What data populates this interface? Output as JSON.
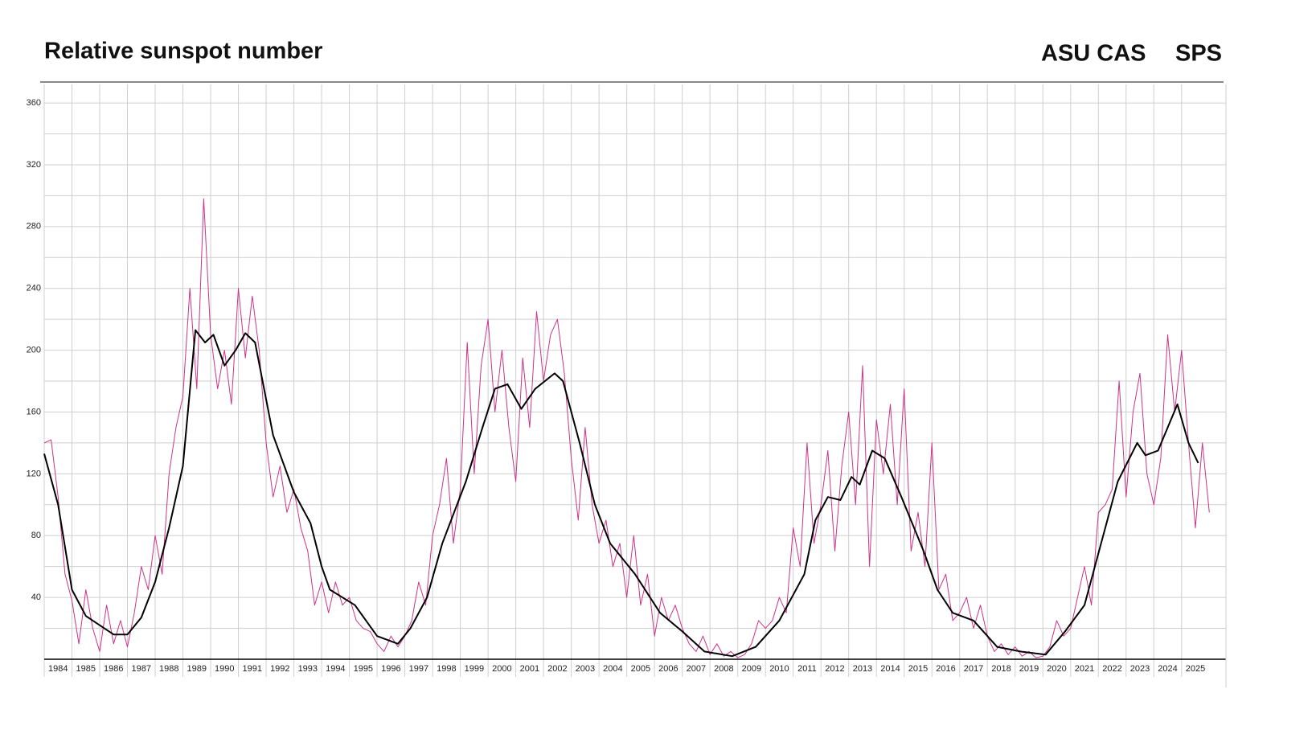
{
  "title": "Relative sunspot number",
  "org": "ASU CAS",
  "org2": "SPS",
  "chart_data": {
    "type": "line",
    "xlim": [
      1984,
      2026.6
    ],
    "ylim": [
      0,
      372
    ],
    "xticks": [
      {
        "value": 1984,
        "label": "1984"
      },
      {
        "value": 1985,
        "label": "1985"
      },
      {
        "value": 1986,
        "label": "1986"
      },
      {
        "value": 1987,
        "label": "1987"
      },
      {
        "value": 1988,
        "label": "1988"
      },
      {
        "value": 1989,
        "label": "1989"
      },
      {
        "value": 1990,
        "label": "1990"
      },
      {
        "value": 1991,
        "label": "1991"
      },
      {
        "value": 1992,
        "label": "1992"
      },
      {
        "value": 1993,
        "label": "1993"
      },
      {
        "value": 1994,
        "label": "1994"
      },
      {
        "value": 1995,
        "label": "1995"
      },
      {
        "value": 1996,
        "label": "1996"
      },
      {
        "value": 1997,
        "label": "1997"
      },
      {
        "value": 1998,
        "label": "1998"
      },
      {
        "value": 1999,
        "label": "1999"
      },
      {
        "value": 2000,
        "label": "2000"
      },
      {
        "value": 2001,
        "label": "2001"
      },
      {
        "value": 2002,
        "label": "2002"
      },
      {
        "value": 2003,
        "label": "2003"
      },
      {
        "value": 2004,
        "label": "2004"
      },
      {
        "value": 2005,
        "label": "2005"
      },
      {
        "value": 2006,
        "label": "2006"
      },
      {
        "value": 2007,
        "label": "2007"
      },
      {
        "value": 2008,
        "label": "2008"
      },
      {
        "value": 2009,
        "label": "2009"
      },
      {
        "value": 2010,
        "label": "2010"
      },
      {
        "value": 2011,
        "label": "2011"
      },
      {
        "value": 2012,
        "label": "2012"
      },
      {
        "value": 2013,
        "label": "2013"
      },
      {
        "value": 2014,
        "label": "2014"
      },
      {
        "value": 2015,
        "label": "2015"
      },
      {
        "value": 2016,
        "label": "2016"
      },
      {
        "value": 2017,
        "label": "2017"
      },
      {
        "value": 2018,
        "label": "2018"
      },
      {
        "value": 2019,
        "label": "2019"
      },
      {
        "value": 2020,
        "label": "2020"
      },
      {
        "value": 2021,
        "label": "2021"
      },
      {
        "value": 2022,
        "label": "2022"
      },
      {
        "value": 2023,
        "label": "2023"
      },
      {
        "value": 2024,
        "label": "2024"
      },
      {
        "value": 2025,
        "label": "2025"
      }
    ],
    "yticks": [
      40,
      80,
      120,
      160,
      200,
      240,
      280,
      320,
      360
    ],
    "ygrid": [
      20,
      40,
      60,
      80,
      100,
      120,
      140,
      160,
      180,
      200,
      220,
      240,
      260,
      280,
      300,
      320,
      340,
      360
    ],
    "grid": true,
    "series": [
      {
        "color": "#cc3388",
        "width": 1,
        "x": [
          1984,
          1984.25,
          1984.5,
          1984.75,
          1985,
          1985.25,
          1985.5,
          1985.75,
          1986,
          1986.25,
          1986.5,
          1986.75,
          1987,
          1987.25,
          1987.5,
          1987.75,
          1988,
          1988.25,
          1988.5,
          1988.75,
          1989,
          1989.25,
          1989.5,
          1989.75,
          1990,
          1990.25,
          1990.5,
          1990.75,
          1991,
          1991.25,
          1991.5,
          1991.75,
          1992,
          1992.25,
          1992.5,
          1992.75,
          1993,
          1993.25,
          1993.5,
          1993.75,
          1994,
          1994.25,
          1994.5,
          1994.75,
          1995,
          1995.25,
          1995.5,
          1995.75,
          1996,
          1996.25,
          1996.5,
          1996.75,
          1997,
          1997.25,
          1997.5,
          1997.75,
          1998,
          1998.25,
          1998.5,
          1998.75,
          1999,
          1999.25,
          1999.5,
          1999.75,
          2000,
          2000.25,
          2000.5,
          2000.75,
          2001,
          2001.25,
          2001.5,
          2001.75,
          2002,
          2002.25,
          2002.5,
          2002.75,
          2003,
          2003.25,
          2003.5,
          2003.75,
          2004,
          2004.25,
          2004.5,
          2004.75,
          2005,
          2005.25,
          2005.5,
          2005.75,
          2006,
          2006.25,
          2006.5,
          2006.75,
          2007,
          2007.25,
          2007.5,
          2007.75,
          2008,
          2008.25,
          2008.5,
          2008.75,
          2009,
          2009.25,
          2009.5,
          2009.75,
          2010,
          2010.25,
          2010.5,
          2010.75,
          2011,
          2011.25,
          2011.5,
          2011.75,
          2012,
          2012.25,
          2012.5,
          2012.75,
          2013,
          2013.25,
          2013.5,
          2013.75,
          2014,
          2014.25,
          2014.5,
          2014.75,
          2015,
          2015.25,
          2015.5,
          2015.75,
          2016,
          2016.25,
          2016.5,
          2016.75,
          2017,
          2017.25,
          2017.5,
          2017.75,
          2018,
          2018.25,
          2018.5,
          2018.75,
          2019,
          2019.25,
          2019.5,
          2019.75,
          2020,
          2020.25,
          2020.5,
          2020.75,
          2021,
          2021.25,
          2021.5,
          2021.75,
          2022,
          2022.25,
          2022.5,
          2022.75,
          2023,
          2023.25,
          2023.5,
          2023.75,
          2024,
          2024.25,
          2024.5,
          2024.75,
          2025,
          2025.25,
          2025.5,
          2025.75,
          2026
        ],
        "values": [
          140,
          142,
          105,
          55,
          38,
          10,
          45,
          20,
          5,
          35,
          10,
          25,
          8,
          30,
          60,
          45,
          80,
          55,
          120,
          150,
          170,
          240,
          175,
          298,
          210,
          175,
          200,
          165,
          240,
          195,
          235,
          200,
          140,
          105,
          125,
          95,
          110,
          85,
          70,
          35,
          50,
          30,
          50,
          35,
          40,
          25,
          20,
          18,
          10,
          5,
          15,
          8,
          15,
          25,
          50,
          35,
          80,
          100,
          130,
          75,
          110,
          205,
          120,
          190,
          220,
          160,
          200,
          150,
          115,
          195,
          150,
          225,
          180,
          210,
          220,
          185,
          130,
          90,
          150,
          100,
          75,
          90,
          60,
          75,
          40,
          80,
          35,
          55,
          15,
          40,
          25,
          35,
          20,
          10,
          5,
          15,
          3,
          10,
          2,
          5,
          1,
          3,
          10,
          25,
          20,
          25,
          40,
          30,
          85,
          60,
          140,
          75,
          100,
          135,
          70,
          125,
          160,
          100,
          190,
          60,
          155,
          120,
          165,
          100,
          175,
          70,
          95,
          60,
          140,
          45,
          55,
          25,
          30,
          40,
          20,
          35,
          15,
          5,
          10,
          3,
          8,
          2,
          5,
          1,
          2,
          8,
          25,
          15,
          20,
          40,
          60,
          35,
          95,
          100,
          110,
          180,
          105,
          160,
          185,
          120,
          100,
          130,
          210,
          160,
          200,
          140,
          85,
          140,
          95
        ]
      },
      {
        "color": "#000000",
        "width": 2,
        "x": [
          1984.0,
          1984.5,
          1985.0,
          1985.5,
          1986.0,
          1986.5,
          1987.0,
          1987.5,
          1988.0,
          1988.5,
          1989.0,
          1989.45,
          1989.8,
          1990.1,
          1990.5,
          1990.9,
          1991.25,
          1991.6,
          1992.25,
          1993.0,
          1993.6,
          1994.0,
          1994.3,
          1995.2,
          1996.0,
          1996.75,
          1997.2,
          1997.8,
          1998.35,
          1999.2,
          1999.8,
          2000.25,
          2000.7,
          2001.2,
          2001.7,
          2002.4,
          2002.7,
          2003.3,
          2003.85,
          2004.4,
          2005.3,
          2006.2,
          2007.0,
          2007.8,
          2008.8,
          2009.65,
          2010.5,
          2011.4,
          2011.8,
          2012.25,
          2012.7,
          2013.1,
          2013.4,
          2013.85,
          2014.3,
          2014.9,
          2015.7,
          2016.2,
          2016.75,
          2017.5,
          2018.35,
          2019.2,
          2020.1,
          2020.8,
          2021.5,
          2022.1,
          2022.7,
          2023.4,
          2023.7,
          2024.15,
          2024.85,
          2025.25,
          2025.6
        ],
        "values": [
          133,
          100,
          45,
          28,
          22,
          16,
          16,
          27,
          50,
          85,
          125,
          213,
          205,
          210,
          190,
          200,
          211,
          205,
          145,
          108,
          88,
          60,
          45,
          35,
          15,
          10,
          20,
          40,
          75,
          115,
          150,
          175,
          178,
          162,
          175,
          185,
          180,
          140,
          100,
          75,
          55,
          30,
          18,
          5,
          2,
          8,
          25,
          55,
          90,
          105,
          103,
          118,
          113,
          135,
          130,
          105,
          70,
          45,
          30,
          25,
          8,
          5,
          3,
          18,
          35,
          75,
          115,
          140,
          132,
          135,
          165,
          140,
          127
        ]
      }
    ]
  }
}
